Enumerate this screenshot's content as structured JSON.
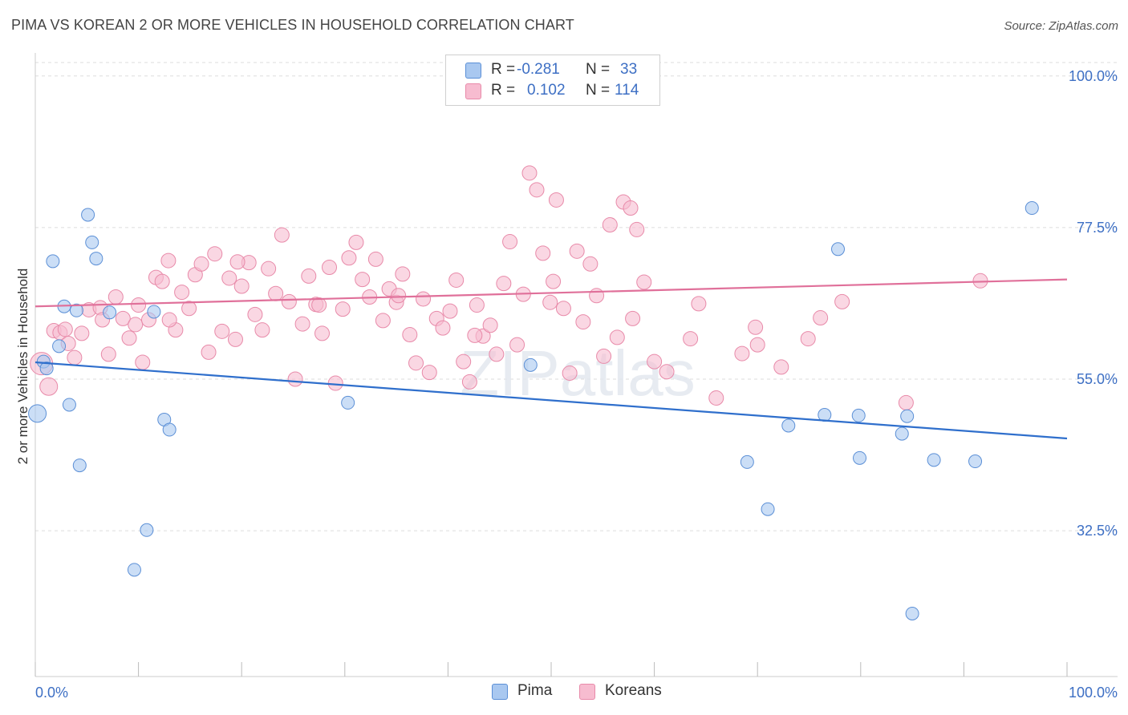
{
  "title": "PIMA VS KOREAN 2 OR MORE VEHICLES IN HOUSEHOLD CORRELATION CHART",
  "source": "Source: ZipAtlas.com",
  "watermark": "ZIPatlas",
  "legend": {
    "rows": [
      {
        "r_label": "R =",
        "r_value": "-0.281",
        "n_label": "N =",
        "n_value": "33"
      },
      {
        "r_label": "R =",
        "r_value": "0.102",
        "n_label": "N =",
        "n_value": "114"
      }
    ]
  },
  "bottom_legend": [
    "Pima",
    "Koreans"
  ],
  "colors": {
    "pima_fill": "#a9c8f0",
    "pima_stroke": "#5b8fd6",
    "pima_line": "#2f6fcc",
    "korean_fill": "#f7bcd0",
    "korean_stroke": "#e88aa9",
    "korean_line": "#e0709a",
    "axis_text": "#3d6fc4",
    "grid": "#dddddd"
  },
  "chart_data": {
    "type": "scatter",
    "title": "PIMA VS KOREAN 2 OR MORE VEHICLES IN HOUSEHOLD CORRELATION CHART",
    "xlabel": "",
    "ylabel": "2 or more Vehicles in Household",
    "xlim": [
      0,
      100
    ],
    "ylim": [
      13,
      102
    ],
    "x_tick_labels": [
      "0.0%",
      "100.0%"
    ],
    "y_ticks": [
      {
        "value": 100.0,
        "label": "100.0%"
      },
      {
        "value": 77.5,
        "label": "77.5%"
      },
      {
        "value": 55.0,
        "label": "55.0%"
      },
      {
        "value": 32.5,
        "label": "32.5%"
      }
    ],
    "series": [
      {
        "name": "Pima",
        "r": -0.281,
        "n": 33,
        "trend": {
          "x": [
            0,
            100
          ],
          "y": [
            57.5,
            46.2
          ]
        },
        "points": [
          [
            0.2,
            49.9,
            11
          ],
          [
            0.8,
            57.6,
            8
          ],
          [
            1.1,
            56.6,
            8
          ],
          [
            1.7,
            72.5,
            8
          ],
          [
            2.3,
            59.9,
            8
          ],
          [
            2.8,
            65.8,
            8
          ],
          [
            3.3,
            51.2,
            8
          ],
          [
            4.0,
            65.2,
            8
          ],
          [
            4.3,
            42.2,
            8
          ],
          [
            5.1,
            79.4,
            8
          ],
          [
            5.5,
            75.3,
            8
          ],
          [
            5.9,
            72.9,
            8
          ],
          [
            7.2,
            64.9,
            8
          ],
          [
            9.6,
            26.7,
            8
          ],
          [
            10.8,
            32.6,
            8
          ],
          [
            11.5,
            65.0,
            8
          ],
          [
            12.5,
            49.0,
            8
          ],
          [
            13.0,
            47.5,
            8
          ],
          [
            30.3,
            51.5,
            8
          ],
          [
            48.0,
            57.1,
            8
          ],
          [
            69.0,
            42.7,
            8
          ],
          [
            71.0,
            35.7,
            8
          ],
          [
            73.0,
            48.1,
            8
          ],
          [
            76.5,
            49.7,
            8
          ],
          [
            77.8,
            74.3,
            8
          ],
          [
            79.8,
            49.6,
            8
          ],
          [
            79.9,
            43.3,
            8
          ],
          [
            84.0,
            46.9,
            8
          ],
          [
            85.0,
            20.2,
            8
          ],
          [
            87.1,
            43.0,
            8
          ],
          [
            91.1,
            42.8,
            8
          ],
          [
            96.6,
            80.4,
            8
          ],
          [
            84.5,
            49.5,
            8
          ]
        ]
      },
      {
        "name": "Koreans",
        "r": 0.102,
        "n": 114,
        "trend": {
          "x": [
            0,
            100
          ],
          "y": [
            65.8,
            69.8
          ]
        },
        "points": [
          [
            0.6,
            57.3,
            14
          ],
          [
            1.3,
            53.9,
            11
          ],
          [
            1.8,
            62.2,
            9
          ],
          [
            2.4,
            61.9,
            9
          ],
          [
            3.2,
            60.3,
            9
          ],
          [
            3.8,
            58.2,
            9
          ],
          [
            4.5,
            61.8,
            9
          ],
          [
            5.2,
            65.3,
            9
          ],
          [
            6.3,
            65.6,
            9
          ],
          [
            6.5,
            63.8,
            9
          ],
          [
            7.1,
            58.7,
            9
          ],
          [
            7.8,
            67.2,
            9
          ],
          [
            8.5,
            64.0,
            9
          ],
          [
            9.1,
            61.1,
            9
          ],
          [
            9.7,
            63.1,
            9
          ],
          [
            10.4,
            57.5,
            9
          ],
          [
            11.0,
            63.8,
            9
          ],
          [
            11.7,
            70.1,
            9
          ],
          [
            12.3,
            69.5,
            9
          ],
          [
            12.9,
            72.6,
            9
          ],
          [
            13.6,
            62.3,
            9
          ],
          [
            14.2,
            67.9,
            9
          ],
          [
            14.9,
            65.5,
            9
          ],
          [
            15.5,
            70.5,
            9
          ],
          [
            16.1,
            72.1,
            9
          ],
          [
            16.8,
            59.0,
            9
          ],
          [
            17.4,
            73.6,
            9
          ],
          [
            18.1,
            62.1,
            9
          ],
          [
            18.8,
            70.0,
            9
          ],
          [
            19.4,
            60.9,
            9
          ],
          [
            20.0,
            68.8,
            9
          ],
          [
            20.7,
            72.3,
            9
          ],
          [
            21.3,
            64.6,
            9
          ],
          [
            22.0,
            62.3,
            9
          ],
          [
            22.6,
            71.4,
            9
          ],
          [
            23.3,
            67.7,
            9
          ],
          [
            23.9,
            76.4,
            9
          ],
          [
            24.6,
            66.5,
            9
          ],
          [
            25.2,
            55.0,
            9
          ],
          [
            25.9,
            63.2,
            9
          ],
          [
            26.5,
            70.3,
            9
          ],
          [
            27.2,
            66.1,
            9
          ],
          [
            27.8,
            61.8,
            9
          ],
          [
            28.5,
            71.6,
            9
          ],
          [
            29.1,
            54.4,
            9
          ],
          [
            29.8,
            65.4,
            9
          ],
          [
            30.4,
            73.0,
            9
          ],
          [
            31.1,
            75.3,
            9
          ],
          [
            31.7,
            69.8,
            9
          ],
          [
            32.4,
            67.2,
            9
          ],
          [
            33.0,
            72.8,
            9
          ],
          [
            33.7,
            63.7,
            9
          ],
          [
            34.3,
            68.4,
            9
          ],
          [
            35.0,
            66.4,
            9
          ],
          [
            35.6,
            70.6,
            9
          ],
          [
            36.3,
            61.6,
            9
          ],
          [
            36.9,
            57.4,
            9
          ],
          [
            37.6,
            66.9,
            9
          ],
          [
            38.2,
            56.0,
            9
          ],
          [
            38.9,
            64.0,
            9
          ],
          [
            39.5,
            62.6,
            9
          ],
          [
            40.2,
            65.1,
            9
          ],
          [
            40.8,
            69.7,
            9
          ],
          [
            41.5,
            57.6,
            9
          ],
          [
            42.1,
            54.6,
            9
          ],
          [
            42.8,
            66.0,
            9
          ],
          [
            43.4,
            61.4,
            9
          ],
          [
            44.1,
            63.0,
            9
          ],
          [
            44.7,
            58.7,
            9
          ],
          [
            45.4,
            69.2,
            9
          ],
          [
            46.0,
            75.4,
            9
          ],
          [
            46.7,
            60.1,
            9
          ],
          [
            47.3,
            67.6,
            9
          ],
          [
            47.9,
            85.6,
            9
          ],
          [
            48.6,
            83.1,
            9
          ],
          [
            49.2,
            73.7,
            9
          ],
          [
            49.9,
            66.4,
            9
          ],
          [
            50.5,
            81.6,
            9
          ],
          [
            51.2,
            65.5,
            9
          ],
          [
            51.8,
            55.9,
            9
          ],
          [
            52.5,
            74.0,
            9
          ],
          [
            53.1,
            63.5,
            9
          ],
          [
            53.8,
            72.1,
            9
          ],
          [
            54.4,
            67.4,
            9
          ],
          [
            55.1,
            58.4,
            9
          ],
          [
            55.7,
            77.9,
            9
          ],
          [
            56.4,
            61.2,
            9
          ],
          [
            57.0,
            81.3,
            9
          ],
          [
            57.7,
            80.4,
            9
          ],
          [
            58.3,
            77.2,
            9
          ],
          [
            59.0,
            69.4,
            9
          ],
          [
            60.0,
            57.6,
            9
          ],
          [
            61.2,
            56.1,
            9
          ],
          [
            63.5,
            61.0,
            9
          ],
          [
            66.0,
            52.2,
            9
          ],
          [
            68.5,
            58.8,
            9
          ],
          [
            69.8,
            62.7,
            9
          ],
          [
            72.3,
            56.8,
            9
          ],
          [
            74.9,
            61.0,
            9
          ],
          [
            76.1,
            64.1,
            9
          ],
          [
            78.2,
            66.5,
            9
          ],
          [
            84.4,
            51.5,
            9
          ],
          [
            91.6,
            69.6,
            9
          ],
          [
            13.0,
            63.8,
            9
          ],
          [
            19.6,
            72.4,
            9
          ],
          [
            27.5,
            66.0,
            9
          ],
          [
            35.2,
            67.4,
            9
          ],
          [
            42.6,
            61.5,
            9
          ],
          [
            50.2,
            69.5,
            9
          ],
          [
            57.9,
            64.0,
            9
          ],
          [
            64.3,
            66.2,
            9
          ],
          [
            70.0,
            60.1,
            9
          ],
          [
            2.9,
            62.4,
            9
          ],
          [
            10.0,
            66.0,
            9
          ]
        ]
      }
    ]
  }
}
